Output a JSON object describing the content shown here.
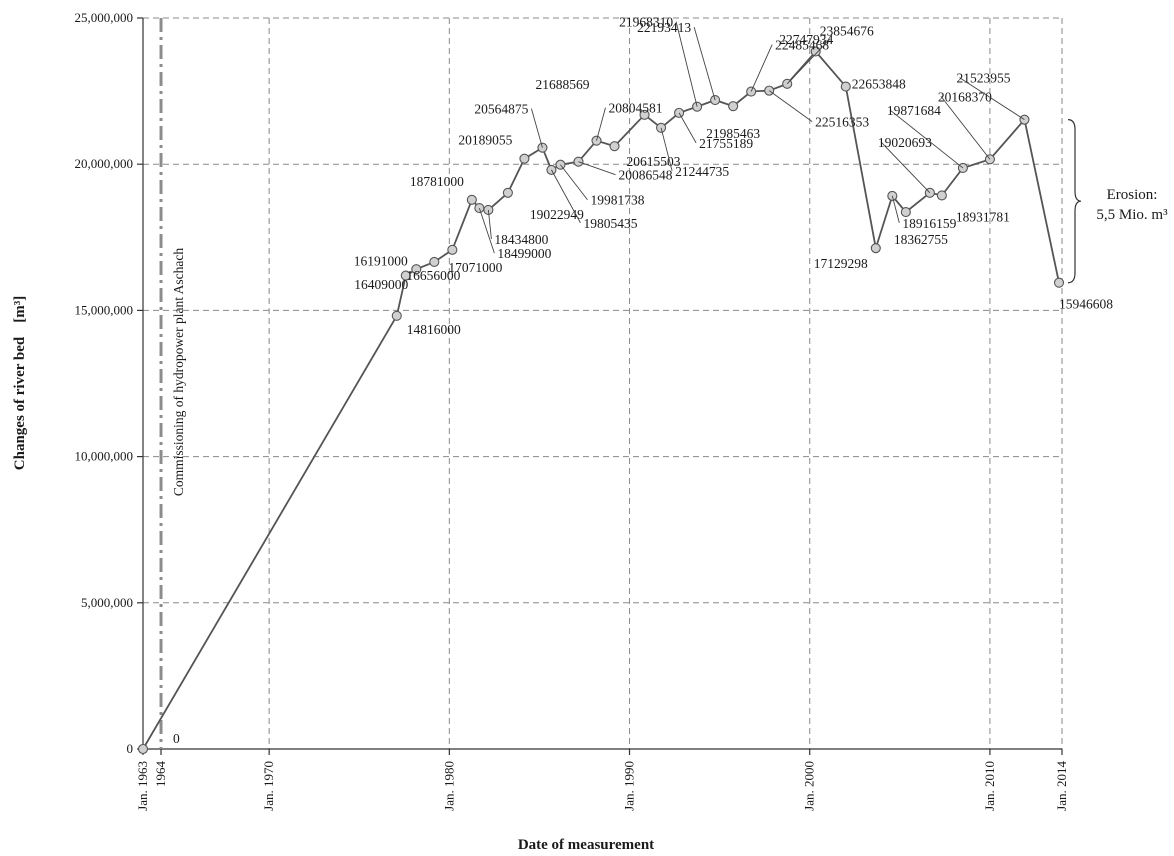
{
  "chart_data": {
    "type": "line",
    "title": "",
    "xlabel": "Date of measurement",
    "ylabel": "Changes of river bed",
    "ylabel_unit": "[m³]",
    "x_axis_type": "date",
    "xlim": [
      "1963-01",
      "2014-01"
    ],
    "ylim": [
      0,
      25000000
    ],
    "grid": true,
    "x_ticks": [
      {
        "date": "1963-01",
        "label": "Jan. 1963"
      },
      {
        "date": "1964-01",
        "label": "1964"
      },
      {
        "date": "1970-01",
        "label": "Jan. 1970"
      },
      {
        "date": "1980-01",
        "label": "Jan. 1980"
      },
      {
        "date": "1990-01",
        "label": "Jan. 1990"
      },
      {
        "date": "2000-01",
        "label": "Jan. 2000"
      },
      {
        "date": "2010-01",
        "label": "Jan. 2010"
      },
      {
        "date": "2014-01",
        "label": "Jan. 2014"
      }
    ],
    "y_ticks": [
      {
        "value": 0,
        "label": "0"
      },
      {
        "value": 5000000,
        "label": "5,000,000"
      },
      {
        "value": 10000000,
        "label": "10,000,000"
      },
      {
        "value": 15000000,
        "label": "15,000,000"
      },
      {
        "value": 20000000,
        "label": "20,000,000"
      },
      {
        "value": 25000000,
        "label": "25,000,000"
      }
    ],
    "series": [
      {
        "points": [
          {
            "x": "1963-01",
            "y": 0,
            "label": "0"
          },
          {
            "x": "1977-02",
            "y": 14816000,
            "label": "14816000"
          },
          {
            "x": "1977-08",
            "y": 16191000,
            "label": "16191000"
          },
          {
            "x": "1978-03",
            "y": 16409000,
            "label": "16409000"
          },
          {
            "x": "1979-03",
            "y": 16656000,
            "label": "16656000"
          },
          {
            "x": "1980-03",
            "y": 17071000,
            "label": "17071000"
          },
          {
            "x": "1981-04",
            "y": 18781000,
            "label": "18781000"
          },
          {
            "x": "1981-09",
            "y": 18499000,
            "label": "18499000"
          },
          {
            "x": "1982-03",
            "y": 18434800,
            "label": "18434800"
          },
          {
            "x": "1983-04",
            "y": 19022949,
            "label": "19022949"
          },
          {
            "x": "1984-03",
            "y": 20189055,
            "label": "20189055"
          },
          {
            "x": "1985-03",
            "y": 20564875,
            "label": "20564875"
          },
          {
            "x": "1985-09",
            "y": 19805435,
            "label": "19805435"
          },
          {
            "x": "1986-03",
            "y": 19981738,
            "label": "19981738"
          },
          {
            "x": "1987-03",
            "y": 20086548,
            "label": "20086548"
          },
          {
            "x": "1988-03",
            "y": 20804581,
            "label": "20804581"
          },
          {
            "x": "1989-03",
            "y": 20615503,
            "label": "20615503"
          },
          {
            "x": "1990-11",
            "y": 21688569,
            "label": "21688569"
          },
          {
            "x": "1991-10",
            "y": 21244735,
            "label": "21244735"
          },
          {
            "x": "1992-10",
            "y": 21755189,
            "label": "21755189"
          },
          {
            "x": "1993-10",
            "y": 21968310,
            "label": "21968310"
          },
          {
            "x": "1994-10",
            "y": 22193413,
            "label": "22193413"
          },
          {
            "x": "1995-10",
            "y": 21985463,
            "label": "21985463"
          },
          {
            "x": "1996-10",
            "y": 22485468,
            "label": "22485468"
          },
          {
            "x": "1997-10",
            "y": 22516353,
            "label": "22516353"
          },
          {
            "x": "1998-10",
            "y": 22747934,
            "label": "22747934"
          },
          {
            "x": "2000-05",
            "y": 23854676,
            "label": "23854676"
          },
          {
            "x": "2002-01",
            "y": 22653848,
            "label": "22653848"
          },
          {
            "x": "2003-09",
            "y": 17129298,
            "label": "17129298"
          },
          {
            "x": "2004-08",
            "y": 18916159,
            "label": "18916159"
          },
          {
            "x": "2005-05",
            "y": 18362755,
            "label": "18362755"
          },
          {
            "x": "2006-09",
            "y": 19020693,
            "label": "19020693"
          },
          {
            "x": "2007-05",
            "y": 18931781,
            "label": "18931781"
          },
          {
            "x": "2008-07",
            "y": 19871684,
            "label": "19871684"
          },
          {
            "x": "2010-01",
            "y": 20168370,
            "label": "20168370"
          },
          {
            "x": "2011-12",
            "y": 21523955,
            "label": "21523955"
          },
          {
            "x": "2013-11",
            "y": 15946608,
            "label": "15946608"
          }
        ]
      }
    ],
    "annotations": [
      {
        "type": "vline",
        "x": "1964-01",
        "text": "Commissioning of hydropower plant Aschach"
      },
      {
        "type": "brace",
        "y_range": [
          15946608,
          21523955
        ],
        "text_lines": [
          "Erosion:",
          "5,5 Mio. m³"
        ]
      }
    ]
  }
}
